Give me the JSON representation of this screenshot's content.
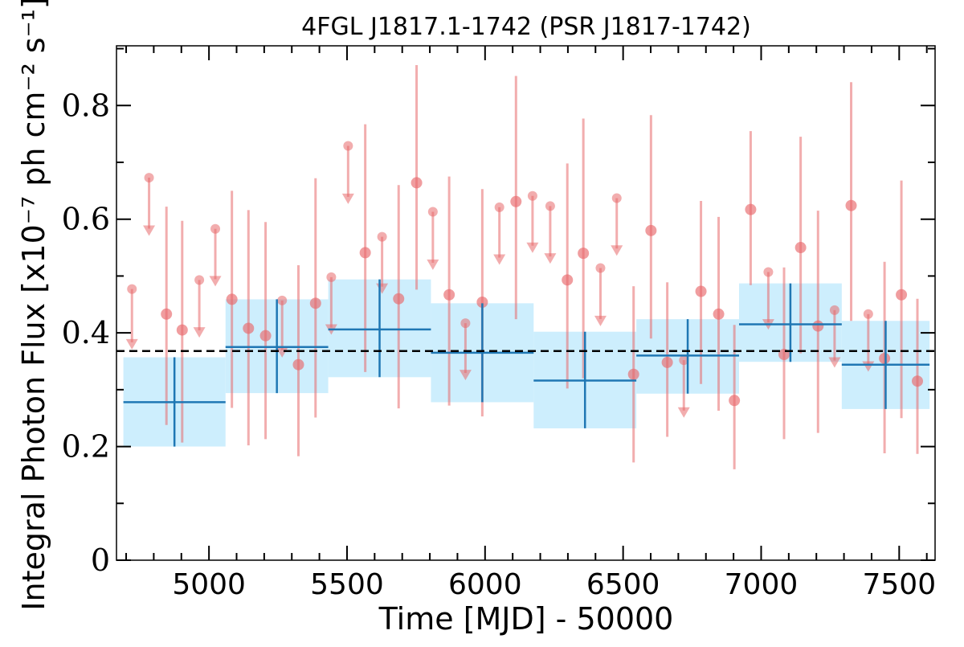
{
  "chart_data": {
    "type": "scatter",
    "title": "4FGL J1817.1-1742 (PSR J1817-1742)",
    "xlabel": "Time [MJD] - 50000",
    "ylabel": "Integral Photon Flux [x10⁻⁷ ph cm⁻² s⁻¹]",
    "xlim": [
      4665,
      7630
    ],
    "ylim": [
      0,
      0.905
    ],
    "xticks": [
      5000,
      5500,
      6000,
      6500,
      7000,
      7500
    ],
    "xtick_labels": [
      "5000",
      "5500",
      "6000",
      "6500",
      "7000",
      "7500"
    ],
    "yticks": [
      0,
      0.2,
      0.4,
      0.6,
      0.8
    ],
    "ytick_labels": [
      "0",
      "0.2",
      "0.4",
      "0.6",
      "0.8"
    ],
    "reference_line": {
      "y": 0.368,
      "style": "dashed",
      "color": "#000000"
    },
    "colors": {
      "short_bins": "#e8696b",
      "long_bins": "#1f77b4",
      "long_band": "#cdeefd"
    },
    "series": [
      {
        "kind": "short-bin-detections",
        "points": [
          {
            "x": 4846,
            "y": 0.433,
            "lo": 0.238,
            "hi": 0.622
          },
          {
            "x": 4903,
            "y": 0.405,
            "lo": 0.207,
            "hi": 0.597
          },
          {
            "x": 5083,
            "y": 0.459,
            "lo": 0.268,
            "hi": 0.65
          },
          {
            "x": 5143,
            "y": 0.408,
            "lo": 0.202,
            "hi": 0.616
          },
          {
            "x": 5205,
            "y": 0.395,
            "lo": 0.213,
            "hi": 0.595
          },
          {
            "x": 5324,
            "y": 0.344,
            "lo": 0.183,
            "hi": 0.519
          },
          {
            "x": 5386,
            "y": 0.452,
            "lo": 0.251,
            "hi": 0.672
          },
          {
            "x": 5566,
            "y": 0.541,
            "lo": 0.331,
            "hi": 0.767
          },
          {
            "x": 5687,
            "y": 0.46,
            "lo": 0.267,
            "hi": 0.66
          },
          {
            "x": 5752,
            "y": 0.664,
            "lo": 0.476,
            "hi": 0.871
          },
          {
            "x": 5870,
            "y": 0.467,
            "lo": 0.272,
            "hi": 0.675
          },
          {
            "x": 5990,
            "y": 0.454,
            "lo": 0.253,
            "hi": 0.653
          },
          {
            "x": 6112,
            "y": 0.631,
            "lo": 0.424,
            "hi": 0.852
          },
          {
            "x": 6298,
            "y": 0.493,
            "lo": 0.302,
            "hi": 0.698
          },
          {
            "x": 6356,
            "y": 0.54,
            "lo": 0.32,
            "hi": 0.777
          },
          {
            "x": 6538,
            "y": 0.327,
            "lo": 0.172,
            "hi": 0.482
          },
          {
            "x": 6601,
            "y": 0.58,
            "lo": 0.39,
            "hi": 0.783
          },
          {
            "x": 6660,
            "y": 0.348,
            "lo": 0.217,
            "hi": 0.489
          },
          {
            "x": 6782,
            "y": 0.473,
            "lo": 0.31,
            "hi": 0.632
          },
          {
            "x": 6846,
            "y": 0.433,
            "lo": 0.263,
            "hi": 0.604
          },
          {
            "x": 6903,
            "y": 0.281,
            "lo": 0.16,
            "hi": 0.414
          },
          {
            "x": 6962,
            "y": 0.617,
            "lo": 0.484,
            "hi": 0.755
          },
          {
            "x": 7083,
            "y": 0.362,
            "lo": 0.213,
            "hi": 0.515
          },
          {
            "x": 7143,
            "y": 0.55,
            "lo": 0.364,
            "hi": 0.745
          },
          {
            "x": 7206,
            "y": 0.412,
            "lo": 0.224,
            "hi": 0.615
          },
          {
            "x": 7326,
            "y": 0.624,
            "lo": 0.421,
            "hi": 0.841
          },
          {
            "x": 7447,
            "y": 0.355,
            "lo": 0.188,
            "hi": 0.525
          },
          {
            "x": 7508,
            "y": 0.467,
            "lo": 0.25,
            "hi": 0.668
          },
          {
            "x": 7566,
            "y": 0.315,
            "lo": 0.187,
            "hi": 0.46
          }
        ]
      },
      {
        "kind": "short-bin-upper-limits",
        "points": [
          {
            "x": 4721,
            "y": 0.477,
            "arrow_to": 0.372
          },
          {
            "x": 4783,
            "y": 0.673,
            "arrow_to": 0.572
          },
          {
            "x": 4965,
            "y": 0.493,
            "arrow_to": 0.393
          },
          {
            "x": 5023,
            "y": 0.583,
            "arrow_to": 0.483
          },
          {
            "x": 5265,
            "y": 0.457,
            "arrow_to": 0.358
          },
          {
            "x": 5443,
            "y": 0.498,
            "arrow_to": 0.398
          },
          {
            "x": 5504,
            "y": 0.729,
            "arrow_to": 0.628
          },
          {
            "x": 5627,
            "y": 0.569,
            "arrow_to": 0.47
          },
          {
            "x": 5811,
            "y": 0.613,
            "arrow_to": 0.512
          },
          {
            "x": 5929,
            "y": 0.417,
            "arrow_to": 0.318
          },
          {
            "x": 6052,
            "y": 0.621,
            "arrow_to": 0.521
          },
          {
            "x": 6172,
            "y": 0.641,
            "arrow_to": 0.542
          },
          {
            "x": 6236,
            "y": 0.623,
            "arrow_to": 0.523
          },
          {
            "x": 6418,
            "y": 0.514,
            "arrow_to": 0.413
          },
          {
            "x": 6477,
            "y": 0.637,
            "arrow_to": 0.537
          },
          {
            "x": 6720,
            "y": 0.352,
            "arrow_to": 0.252
          },
          {
            "x": 7026,
            "y": 0.507,
            "arrow_to": 0.407
          },
          {
            "x": 7266,
            "y": 0.44,
            "arrow_to": 0.34
          },
          {
            "x": 7388,
            "y": 0.433,
            "arrow_to": 0.333
          }
        ]
      },
      {
        "kind": "long-bins",
        "bins": [
          {
            "x0": 4690,
            "x1": 5060,
            "y": 0.278,
            "lo": 0.2,
            "hi": 0.357
          },
          {
            "x0": 5060,
            "x1": 5432,
            "y": 0.375,
            "lo": 0.294,
            "hi": 0.459
          },
          {
            "x0": 5432,
            "x1": 5804,
            "y": 0.406,
            "lo": 0.322,
            "hi": 0.494
          },
          {
            "x0": 5804,
            "x1": 6176,
            "y": 0.365,
            "lo": 0.278,
            "hi": 0.452
          },
          {
            "x0": 6176,
            "x1": 6548,
            "y": 0.316,
            "lo": 0.232,
            "hi": 0.402
          },
          {
            "x0": 6548,
            "x1": 6920,
            "y": 0.36,
            "lo": 0.293,
            "hi": 0.424
          },
          {
            "x0": 6920,
            "x1": 7292,
            "y": 0.415,
            "lo": 0.349,
            "hi": 0.487
          },
          {
            "x0": 7292,
            "x1": 7610,
            "y": 0.344,
            "lo": 0.266,
            "hi": 0.421
          }
        ]
      }
    ]
  }
}
